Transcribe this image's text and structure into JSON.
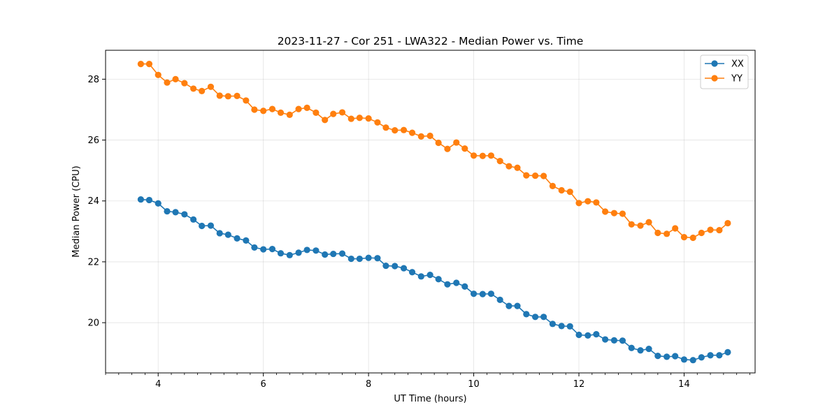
{
  "chart_data": {
    "type": "line",
    "title": "2023-11-27 - Cor 251 - LWA322 - Median Power vs. Time",
    "xlabel": "UT Time (hours)",
    "ylabel": "Median Power (CPU)",
    "xlim": [
      3.0,
      15.35
    ],
    "ylim": [
      18.35,
      28.95
    ],
    "xticks": [
      4,
      6,
      8,
      10,
      12,
      14
    ],
    "xtick_labels": [
      "4",
      "6",
      "8",
      "10",
      "12",
      "14"
    ],
    "yticks": [
      20,
      22,
      24,
      26,
      28
    ],
    "ytick_labels": [
      "20",
      "22",
      "24",
      "26",
      "28"
    ],
    "grid": true,
    "legend_placement": "top-right",
    "x": [
      3.67,
      3.83,
      4.0,
      4.17,
      4.33,
      4.5,
      4.67,
      4.83,
      5.0,
      5.17,
      5.33,
      5.5,
      5.67,
      5.83,
      6.0,
      6.17,
      6.33,
      6.5,
      6.67,
      6.83,
      7.0,
      7.17,
      7.33,
      7.5,
      7.67,
      7.83,
      8.0,
      8.17,
      8.33,
      8.5,
      8.67,
      8.83,
      9.0,
      9.17,
      9.33,
      9.5,
      9.67,
      9.83,
      10.0,
      10.17,
      10.33,
      10.5,
      10.67,
      10.83,
      11.0,
      11.17,
      11.33,
      11.5,
      11.67,
      11.83,
      12.0,
      12.17,
      12.33,
      12.5,
      12.67,
      12.83,
      13.0,
      13.17,
      13.33,
      13.5,
      13.67,
      13.83,
      14.0,
      14.17,
      14.33,
      14.5,
      14.67,
      14.83
    ],
    "series": [
      {
        "name": "XX",
        "color": "#1f77b4",
        "values": [
          24.05,
          24.03,
          23.92,
          23.66,
          23.63,
          23.56,
          23.39,
          23.18,
          23.19,
          22.94,
          22.89,
          22.77,
          22.7,
          22.47,
          22.41,
          22.42,
          22.28,
          22.22,
          22.3,
          22.39,
          22.37,
          22.24,
          22.26,
          22.27,
          22.1,
          22.1,
          22.13,
          22.12,
          21.87,
          21.86,
          21.79,
          21.66,
          21.52,
          21.57,
          21.43,
          21.26,
          21.31,
          21.19,
          20.95,
          20.94,
          20.95,
          20.75,
          20.55,
          20.55,
          20.28,
          20.19,
          20.19,
          19.96,
          19.89,
          19.88,
          19.6,
          19.58,
          19.62,
          19.45,
          19.42,
          19.41,
          19.17,
          19.09,
          19.14,
          18.91,
          18.88,
          18.9,
          18.79,
          18.77,
          18.86,
          18.93,
          18.93,
          19.03
        ]
      },
      {
        "name": "YY",
        "color": "#ff7f0e",
        "values": [
          28.5,
          28.5,
          28.14,
          27.89,
          28.0,
          27.87,
          27.69,
          27.61,
          27.75,
          27.46,
          27.44,
          27.45,
          27.3,
          27.0,
          26.96,
          27.02,
          26.9,
          26.83,
          27.02,
          27.06,
          26.9,
          26.66,
          26.86,
          26.91,
          26.7,
          26.73,
          26.71,
          26.58,
          26.41,
          26.32,
          26.33,
          26.24,
          26.12,
          26.14,
          25.91,
          25.71,
          25.92,
          25.72,
          25.49,
          25.48,
          25.49,
          25.31,
          25.14,
          25.09,
          24.84,
          24.83,
          24.82,
          24.49,
          24.35,
          24.3,
          23.93,
          23.99,
          23.95,
          23.65,
          23.6,
          23.58,
          23.23,
          23.19,
          23.3,
          22.95,
          22.92,
          23.1,
          22.81,
          22.79,
          22.95,
          23.05,
          23.04,
          23.27
        ]
      }
    ]
  }
}
